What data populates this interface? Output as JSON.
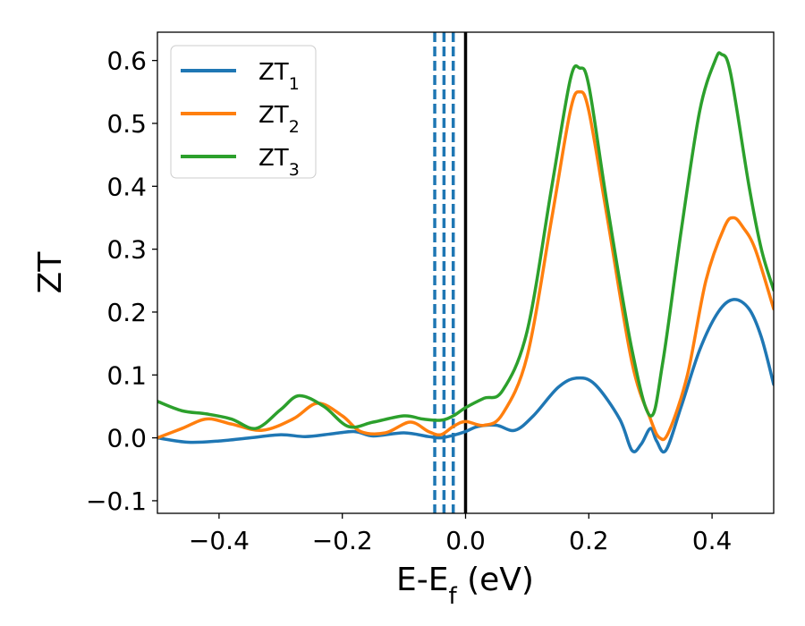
{
  "chart_data": {
    "type": "line",
    "xlabel": "E-E",
    "xlabel_sub": "f",
    "xlabel_unit": " (eV)",
    "ylabel": "ZT",
    "xlim": [
      -0.5,
      0.5
    ],
    "ylim": [
      -0.12,
      0.645
    ],
    "x_ticks": [
      -0.4,
      -0.2,
      0.0,
      0.2,
      0.4
    ],
    "x_tick_labels": [
      "−0.4",
      "−0.2",
      "0.0",
      "0.2",
      "0.4"
    ],
    "y_ticks": [
      -0.1,
      0.0,
      0.1,
      0.2,
      0.3,
      0.4,
      0.5,
      0.6
    ],
    "y_tick_labels": [
      "−0.1",
      "0.0",
      "0.1",
      "0.2",
      "0.3",
      "0.4",
      "0.5",
      "0.6"
    ],
    "grid": false,
    "legend_position": "upper-left",
    "vlines": [
      {
        "x": -0.05,
        "style": "dashed",
        "color": "#1f77b4"
      },
      {
        "x": -0.035,
        "style": "dashed",
        "color": "#1f77b4"
      },
      {
        "x": -0.02,
        "style": "dashed",
        "color": "#1f77b4"
      },
      {
        "x": 0.0,
        "style": "solid",
        "color": "#000000"
      }
    ],
    "series": [
      {
        "name": "ZT",
        "name_sub": "1",
        "color": "#1f77b4",
        "points": [
          [
            -0.5,
            0.0
          ],
          [
            -0.45,
            -0.007
          ],
          [
            -0.4,
            -0.005
          ],
          [
            -0.35,
            0.0
          ],
          [
            -0.3,
            0.005
          ],
          [
            -0.26,
            0.002
          ],
          [
            -0.22,
            0.006
          ],
          [
            -0.18,
            0.01
          ],
          [
            -0.15,
            0.003
          ],
          [
            -0.1,
            0.008
          ],
          [
            -0.06,
            0.002
          ],
          [
            -0.04,
            0.0
          ],
          [
            -0.02,
            0.004
          ],
          [
            0.0,
            0.01
          ],
          [
            0.02,
            0.018
          ],
          [
            0.05,
            0.02
          ],
          [
            0.08,
            0.012
          ],
          [
            0.11,
            0.035
          ],
          [
            0.15,
            0.08
          ],
          [
            0.18,
            0.095
          ],
          [
            0.21,
            0.085
          ],
          [
            0.25,
            0.03
          ],
          [
            0.27,
            -0.02
          ],
          [
            0.285,
            -0.01
          ],
          [
            0.3,
            0.015
          ],
          [
            0.31,
            -0.005
          ],
          [
            0.325,
            -0.02
          ],
          [
            0.35,
            0.05
          ],
          [
            0.38,
            0.14
          ],
          [
            0.41,
            0.2
          ],
          [
            0.435,
            0.22
          ],
          [
            0.46,
            0.205
          ],
          [
            0.48,
            0.16
          ],
          [
            0.5,
            0.085
          ]
        ]
      },
      {
        "name": "ZT",
        "name_sub": "2",
        "color": "#ff7f0e",
        "points": [
          [
            -0.5,
            0.0
          ],
          [
            -0.46,
            0.015
          ],
          [
            -0.42,
            0.03
          ],
          [
            -0.38,
            0.022
          ],
          [
            -0.33,
            0.012
          ],
          [
            -0.28,
            0.03
          ],
          [
            -0.24,
            0.055
          ],
          [
            -0.2,
            0.035
          ],
          [
            -0.17,
            0.01
          ],
          [
            -0.13,
            0.008
          ],
          [
            -0.09,
            0.025
          ],
          [
            -0.06,
            0.01
          ],
          [
            -0.04,
            0.005
          ],
          [
            -0.02,
            0.018
          ],
          [
            0.0,
            0.026
          ],
          [
            0.03,
            0.02
          ],
          [
            0.06,
            0.038
          ],
          [
            0.1,
            0.13
          ],
          [
            0.14,
            0.35
          ],
          [
            0.17,
            0.52
          ],
          [
            0.185,
            0.55
          ],
          [
            0.2,
            0.52
          ],
          [
            0.23,
            0.35
          ],
          [
            0.27,
            0.12
          ],
          [
            0.3,
            0.03
          ],
          [
            0.315,
            0.0
          ],
          [
            0.33,
            0.01
          ],
          [
            0.36,
            0.1
          ],
          [
            0.39,
            0.25
          ],
          [
            0.42,
            0.335
          ],
          [
            0.435,
            0.35
          ],
          [
            0.45,
            0.335
          ],
          [
            0.47,
            0.3
          ],
          [
            0.5,
            0.205
          ]
        ]
      },
      {
        "name": "ZT",
        "name_sub": "3",
        "color": "#2ca02c",
        "points": [
          [
            -0.5,
            0.058
          ],
          [
            -0.46,
            0.043
          ],
          [
            -0.42,
            0.038
          ],
          [
            -0.38,
            0.03
          ],
          [
            -0.34,
            0.015
          ],
          [
            -0.3,
            0.045
          ],
          [
            -0.27,
            0.067
          ],
          [
            -0.23,
            0.05
          ],
          [
            -0.19,
            0.018
          ],
          [
            -0.15,
            0.025
          ],
          [
            -0.1,
            0.035
          ],
          [
            -0.07,
            0.03
          ],
          [
            -0.04,
            0.028
          ],
          [
            -0.02,
            0.035
          ],
          [
            0.0,
            0.048
          ],
          [
            0.03,
            0.063
          ],
          [
            0.06,
            0.075
          ],
          [
            0.1,
            0.17
          ],
          [
            0.14,
            0.4
          ],
          [
            0.17,
            0.57
          ],
          [
            0.185,
            0.588
          ],
          [
            0.2,
            0.56
          ],
          [
            0.23,
            0.37
          ],
          [
            0.27,
            0.14
          ],
          [
            0.3,
            0.035
          ],
          [
            0.32,
            0.12
          ],
          [
            0.35,
            0.33
          ],
          [
            0.38,
            0.52
          ],
          [
            0.405,
            0.6
          ],
          [
            0.415,
            0.61
          ],
          [
            0.43,
            0.58
          ],
          [
            0.46,
            0.4
          ],
          [
            0.48,
            0.3
          ],
          [
            0.5,
            0.235
          ]
        ]
      }
    ]
  }
}
